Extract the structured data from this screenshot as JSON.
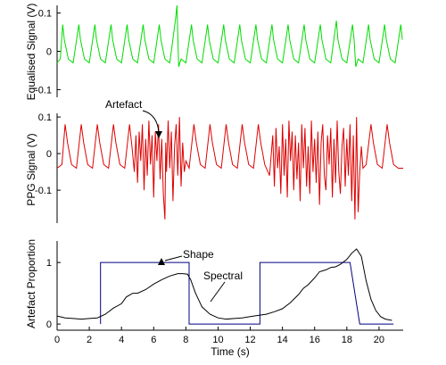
{
  "chart_data": [
    {
      "type": "line",
      "panel": "top",
      "ylabel": "Equalised Signal (V)",
      "yticks": [
        "0.1",
        "0",
        "-0.1"
      ],
      "ylim": [
        -0.12,
        0.12
      ],
      "series": [
        {
          "color": "#00dd00",
          "x": [
            0.0,
            0.2,
            0.35,
            0.45,
            0.7,
            1.0,
            1.35,
            1.45,
            1.7,
            2.0,
            2.35,
            2.45,
            2.7,
            3.0,
            3.35,
            3.45,
            3.7,
            4.0,
            4.35,
            4.45,
            4.7,
            5.0,
            5.35,
            5.45,
            5.7,
            6.0,
            6.35,
            6.45,
            6.7,
            7.0,
            7.35,
            7.45,
            7.55,
            7.7,
            8.0,
            8.35,
            8.45,
            8.7,
            9.0,
            9.35,
            9.45,
            9.7,
            10.0,
            10.35,
            10.45,
            10.7,
            11.0,
            11.35,
            11.45,
            11.7,
            12.0,
            12.35,
            12.45,
            12.7,
            13.0,
            13.35,
            13.45,
            13.7,
            14.0,
            14.35,
            14.45,
            14.7,
            15.0,
            15.35,
            15.45,
            15.7,
            16.0,
            16.35,
            16.45,
            16.7,
            17.0,
            17.35,
            17.45,
            17.7,
            18.0,
            18.35,
            18.45,
            18.55,
            18.7,
            19.0,
            19.35,
            19.45,
            19.7,
            20.0,
            20.35,
            20.45,
            20.7,
            21.0,
            21.35,
            21.45
          ],
          "y": [
            -0.03,
            -0.02,
            0.07,
            0.03,
            -0.02,
            -0.03,
            0.07,
            0.03,
            -0.02,
            -0.03,
            0.07,
            0.03,
            -0.02,
            -0.03,
            0.07,
            0.03,
            -0.02,
            -0.03,
            0.07,
            0.03,
            -0.02,
            -0.03,
            0.07,
            0.03,
            -0.02,
            -0.03,
            0.07,
            0.03,
            -0.02,
            -0.03,
            0.08,
            0.12,
            -0.04,
            -0.02,
            -0.03,
            0.07,
            0.03,
            -0.02,
            -0.03,
            0.07,
            0.03,
            -0.02,
            -0.03,
            0.07,
            0.03,
            -0.02,
            -0.03,
            0.07,
            0.03,
            -0.02,
            -0.03,
            0.07,
            0.03,
            -0.02,
            -0.03,
            0.07,
            0.03,
            -0.02,
            -0.03,
            0.07,
            0.03,
            -0.02,
            -0.03,
            0.07,
            0.03,
            -0.02,
            -0.03,
            0.07,
            0.03,
            -0.02,
            -0.03,
            0.08,
            0.03,
            -0.02,
            -0.03,
            0.07,
            0.03,
            -0.04,
            -0.02,
            -0.03,
            0.07,
            0.03,
            -0.02,
            -0.03,
            0.07,
            0.03,
            -0.02,
            -0.03,
            0.07,
            0.03
          ]
        }
      ]
    },
    {
      "type": "line",
      "panel": "middle",
      "ylabel": "PPG Signal (V)",
      "yticks": [
        "0.1",
        "0",
        "-0.1"
      ],
      "ylim": [
        -0.19,
        0.11
      ],
      "annotations": [
        {
          "text": "Artefact",
          "x": 6.4,
          "y": 0.07
        }
      ],
      "series": [
        {
          "color": "#dd0000",
          "x": [
            0.0,
            0.3,
            0.5,
            0.65,
            0.9,
            1.2,
            1.5,
            1.65,
            1.9,
            2.2,
            2.5,
            2.65,
            2.9,
            3.2,
            3.5,
            3.65,
            3.9,
            4.2,
            4.5,
            4.65,
            4.8,
            4.9,
            5.0,
            5.1,
            5.2,
            5.3,
            5.4,
            5.5,
            5.6,
            5.7,
            5.8,
            5.9,
            6.0,
            6.1,
            6.2,
            6.3,
            6.4,
            6.5,
            6.6,
            6.7,
            6.75,
            6.8,
            6.9,
            7.0,
            7.1,
            7.2,
            7.3,
            7.4,
            7.5,
            7.6,
            7.7,
            7.8,
            7.9,
            8.0,
            8.2,
            8.5,
            8.65,
            8.9,
            9.2,
            9.5,
            9.65,
            9.9,
            10.2,
            10.5,
            10.65,
            10.9,
            11.2,
            11.5,
            11.65,
            11.9,
            12.2,
            12.5,
            12.65,
            12.9,
            13.2,
            13.4,
            13.5,
            13.6,
            13.7,
            13.8,
            13.9,
            14.0,
            14.1,
            14.2,
            14.3,
            14.4,
            14.5,
            14.6,
            14.7,
            14.8,
            14.9,
            15.0,
            15.1,
            15.2,
            15.3,
            15.4,
            15.5,
            15.6,
            15.7,
            15.8,
            15.9,
            16.0,
            16.1,
            16.2,
            16.3,
            16.4,
            16.5,
            16.6,
            16.7,
            16.8,
            16.9,
            17.0,
            17.1,
            17.2,
            17.3,
            17.4,
            17.5,
            17.6,
            17.7,
            17.8,
            17.9,
            18.0,
            18.1,
            18.2,
            18.3,
            18.4,
            18.5,
            18.6,
            18.7,
            18.8,
            18.9,
            19.0,
            19.2,
            19.5,
            19.65,
            19.9,
            20.2,
            20.5,
            20.65,
            20.9,
            21.2,
            21.5
          ],
          "y": [
            -0.04,
            -0.03,
            0.08,
            0.03,
            -0.03,
            -0.04,
            0.08,
            0.03,
            -0.03,
            -0.04,
            0.08,
            0.03,
            -0.03,
            -0.04,
            0.08,
            0.03,
            -0.03,
            -0.04,
            0.08,
            0.02,
            -0.05,
            0.05,
            -0.08,
            0.06,
            -0.02,
            0.08,
            -0.1,
            0.04,
            -0.06,
            0.09,
            -0.03,
            0.05,
            -0.12,
            0.06,
            -0.02,
            0.08,
            -0.07,
            0.04,
            -0.11,
            -0.18,
            0.03,
            -0.05,
            0.09,
            -0.04,
            0.06,
            -0.13,
            0.02,
            0.08,
            -0.06,
            0.1,
            -0.09,
            0.03,
            -0.05,
            -0.02,
            -0.04,
            0.08,
            0.03,
            -0.03,
            -0.04,
            0.08,
            0.03,
            -0.03,
            -0.04,
            0.08,
            0.03,
            -0.03,
            -0.04,
            0.08,
            0.03,
            -0.03,
            -0.04,
            0.08,
            0.03,
            -0.03,
            -0.06,
            0.05,
            -0.09,
            0.07,
            -0.04,
            0.02,
            -0.11,
            0.08,
            -0.06,
            0.04,
            -0.12,
            0.09,
            -0.02,
            0.06,
            -0.1,
            0.05,
            -0.07,
            0.03,
            -0.13,
            0.08,
            -0.04,
            0.07,
            -0.09,
            0.02,
            -0.11,
            0.09,
            -0.05,
            0.04,
            -0.08,
            0.06,
            -0.14,
            0.03,
            0.08,
            -0.06,
            -0.1,
            0.05,
            -0.03,
            0.07,
            -0.12,
            0.04,
            -0.08,
            0.09,
            -0.05,
            -0.11,
            0.02,
            0.07,
            -0.09,
            0.04,
            -0.06,
            0.08,
            -0.13,
            0.05,
            -0.18,
            0.1,
            -0.16,
            -0.05,
            0.02,
            -0.04,
            -0.03,
            0.08,
            0.03,
            -0.03,
            -0.04,
            0.08,
            0.03,
            -0.03,
            -0.04,
            -0.04
          ]
        }
      ]
    },
    {
      "type": "line",
      "panel": "bottom",
      "xlabel": "Time (s)",
      "ylabel": "Artefact Proportion",
      "yticks": [
        "1",
        "0"
      ],
      "xticks": [
        0,
        2,
        4,
        6,
        8,
        10,
        12,
        14,
        16,
        18,
        20
      ],
      "xlim": [
        0,
        21.5
      ],
      "ylim": [
        -0.1,
        1.35
      ],
      "annotations": [
        {
          "text": "Shape",
          "x": 7.9,
          "y": 1.15
        },
        {
          "text": "Spectral",
          "x": 9.1,
          "y": 0.82
        }
      ],
      "series": [
        {
          "color": "#000080",
          "x": [
            2.7,
            2.7,
            8.2,
            8.2,
            12.6,
            12.6,
            18.2,
            18.8,
            20.9
          ],
          "y": [
            0,
            1,
            1,
            0,
            0,
            1,
            1,
            0,
            0
          ]
        },
        {
          "color": "#000000",
          "x": [
            0.0,
            0.5,
            1.0,
            1.5,
            2.0,
            2.5,
            3.0,
            3.5,
            4.0,
            4.3,
            4.7,
            5.0,
            5.5,
            6.0,
            6.5,
            7.0,
            7.5,
            7.8,
            8.1,
            8.3,
            8.6,
            9.0,
            9.5,
            10.0,
            10.5,
            11.0,
            11.5,
            12.0,
            12.5,
            13.0,
            13.5,
            14.0,
            14.5,
            15.0,
            15.3,
            15.6,
            16.0,
            16.3,
            16.7,
            17.0,
            17.3,
            17.6,
            18.0,
            18.3,
            18.6,
            18.9,
            19.2,
            19.5,
            19.8,
            20.1,
            20.4,
            20.8
          ],
          "y": [
            0.13,
            0.1,
            0.09,
            0.08,
            0.09,
            0.1,
            0.16,
            0.26,
            0.33,
            0.44,
            0.5,
            0.5,
            0.56,
            0.65,
            0.72,
            0.78,
            0.82,
            0.82,
            0.81,
            0.72,
            0.5,
            0.28,
            0.16,
            0.1,
            0.08,
            0.09,
            0.1,
            0.12,
            0.14,
            0.16,
            0.2,
            0.25,
            0.35,
            0.48,
            0.58,
            0.64,
            0.75,
            0.85,
            0.88,
            0.92,
            0.93,
            0.97,
            1.05,
            1.15,
            1.22,
            1.1,
            0.7,
            0.4,
            0.22,
            0.12,
            0.08,
            0.06
          ]
        }
      ]
    }
  ]
}
